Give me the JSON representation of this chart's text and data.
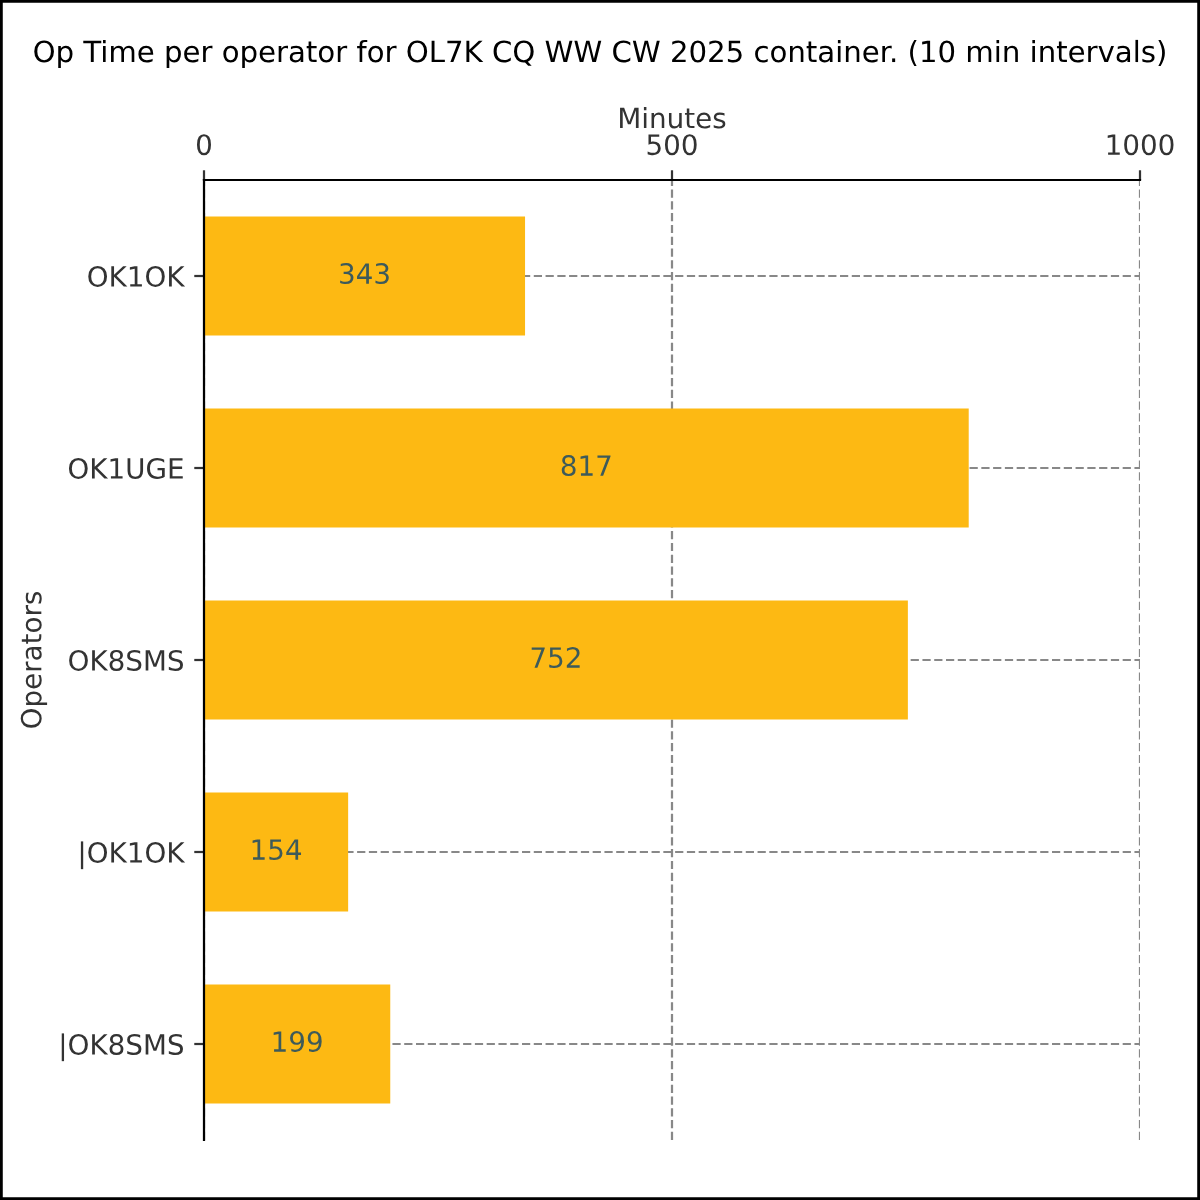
{
  "chart_data": {
    "type": "bar",
    "orientation": "horizontal",
    "title": "Op Time per operator for OL7K CQ WW CW 2025 container. (10 min intervals)",
    "xlabel": "Minutes",
    "ylabel": "Operators",
    "categories": [
      "OK1OK",
      "OK1UGE",
      "OK8SMS",
      "|OK1OK",
      "|OK8SMS"
    ],
    "values": [
      343,
      817,
      752,
      154,
      199
    ],
    "color": "#fdb913",
    "data_labels": true,
    "xlim": [
      0,
      1000
    ],
    "xticks": [
      0,
      500,
      1000
    ],
    "grid": true
  }
}
